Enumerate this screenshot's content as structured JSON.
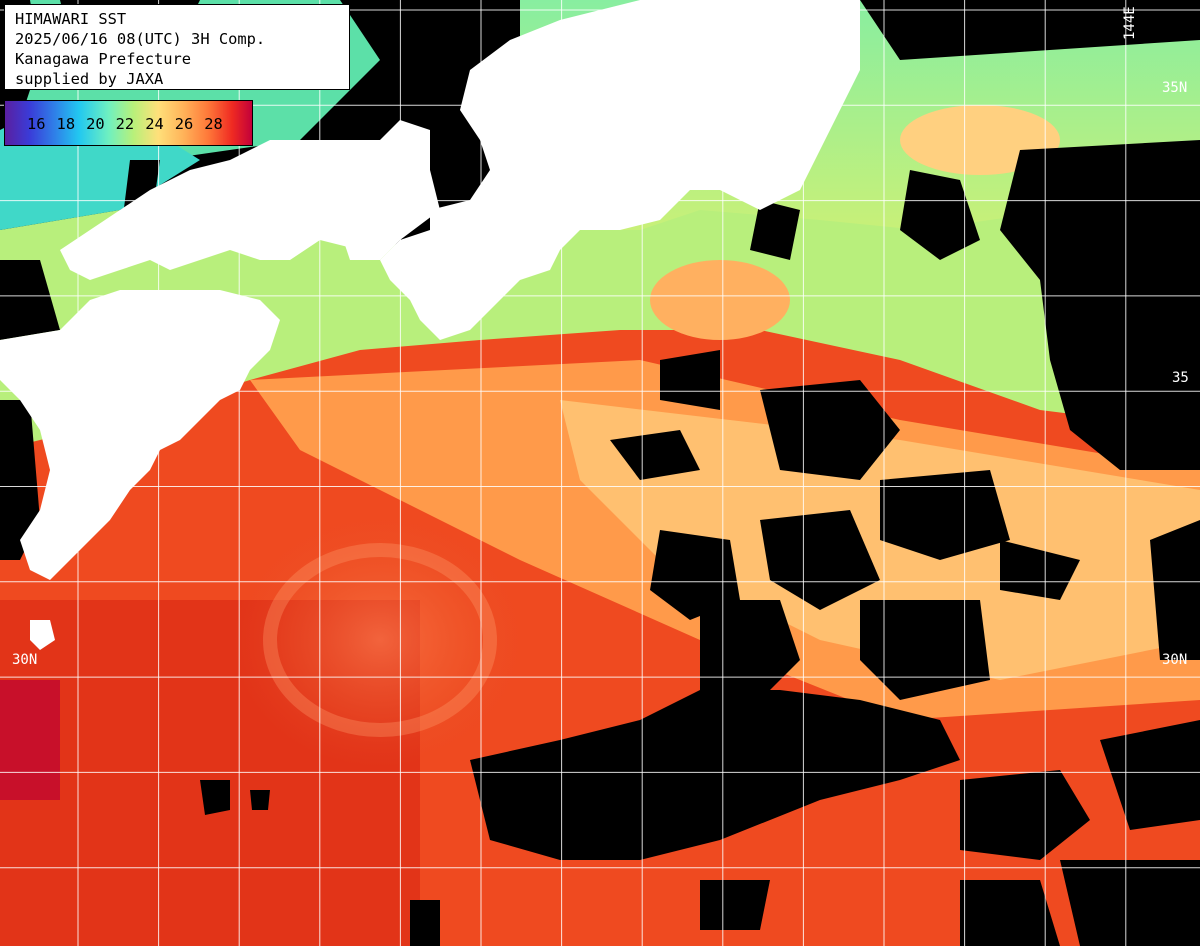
{
  "caption": {
    "line1": "HIMAWARI SST",
    "line2": "2025/06/16 08(UTC) 3H Comp.",
    "line3": "Kanagawa Prefecture",
    "line4": "supplied by JAXA"
  },
  "legend": {
    "unit_ticks": [
      "16",
      "18",
      "20",
      "22",
      "24",
      "26",
      "28"
    ],
    "colors": {
      "16": "#5a1fa0",
      "18": "#2f7fe8",
      "20": "#22c8f0",
      "22": "#b8f07a",
      "24": "#ffe07a",
      "26": "#ff7a3a",
      "28": "#c2003a"
    }
  },
  "grid_labels": {
    "lat_30n_left": "30N",
    "lat_30n_right": "30N",
    "lat_35n_right": "35N",
    "lat_35_left": "35",
    "lon_144e": "144E",
    "lon_140e_right": "35"
  },
  "palette": {
    "land": "#ffffff",
    "cloud": "#000000",
    "grid": "#ffffff",
    "warm": "#ef4a20",
    "warmer": "#e02818",
    "mild": "#ffb060",
    "cool": "#a8f078",
    "cooler": "#70e8a0",
    "coolest": "#40d8d8"
  }
}
